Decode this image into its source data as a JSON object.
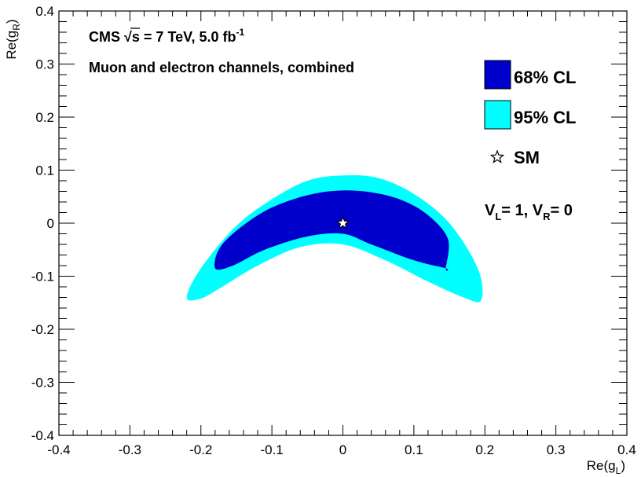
{
  "chart_data": {
    "type": "contour",
    "x_axis": {
      "label": {
        "main": "Re(g",
        "sub": "L",
        "close": ")"
      },
      "range": [
        -0.4,
        0.4
      ],
      "major_ticks": [
        -0.4,
        -0.3,
        -0.2,
        -0.1,
        0,
        0.1,
        0.2,
        0.3,
        0.4
      ],
      "tick_labels": [
        "-0.4",
        "-0.3",
        "-0.2",
        "-0.1",
        "0",
        "0.1",
        "0.2",
        "0.3",
        "0.4"
      ]
    },
    "y_axis": {
      "label": {
        "main": "Re(g",
        "sub": "R",
        "close": ")"
      },
      "range": [
        -0.4,
        0.4
      ],
      "major_ticks": [
        -0.4,
        -0.3,
        -0.2,
        -0.1,
        0,
        0.1,
        0.2,
        0.3,
        0.4
      ],
      "tick_labels": [
        "-0.4",
        "-0.3",
        "-0.2",
        "-0.1",
        "0",
        "0.1",
        "0.2",
        "0.3",
        "0.4"
      ]
    },
    "regions": [
      {
        "name": "95% CL",
        "color": "#00FFFF",
        "outer_boundary": [
          [
            -0.22,
            -0.14
          ],
          [
            -0.2,
            -0.085
          ],
          [
            -0.15,
            -0.005
          ],
          [
            -0.1,
            0.045
          ],
          [
            -0.05,
            0.08
          ],
          [
            0,
            0.09
          ],
          [
            0.05,
            0.085
          ],
          [
            0.1,
            0.055
          ],
          [
            0.15,
            0.0
          ],
          [
            0.19,
            -0.085
          ],
          [
            0.195,
            -0.145
          ]
        ],
        "inner_boundary": [
          [
            0.17,
            -0.14
          ],
          [
            0.12,
            -0.11
          ],
          [
            0.06,
            -0.07
          ],
          [
            0.0,
            -0.04
          ],
          [
            -0.06,
            -0.045
          ],
          [
            -0.12,
            -0.08
          ],
          [
            -0.17,
            -0.12
          ],
          [
            -0.2,
            -0.142
          ]
        ]
      },
      {
        "name": "68% CL",
        "color": "#0000CC",
        "outer_boundary": [
          [
            -0.18,
            -0.085
          ],
          [
            -0.17,
            -0.04
          ],
          [
            -0.12,
            0.015
          ],
          [
            -0.07,
            0.045
          ],
          [
            -0.02,
            0.06
          ],
          [
            0.03,
            0.06
          ],
          [
            0.08,
            0.045
          ],
          [
            0.12,
            0.015
          ],
          [
            0.148,
            -0.03
          ],
          [
            0.145,
            -0.085
          ]
        ],
        "inner_boundary": [
          [
            0.145,
            -0.085
          ],
          [
            0.1,
            -0.07
          ],
          [
            0.04,
            -0.04
          ],
          [
            0.0,
            -0.02
          ],
          [
            -0.05,
            -0.025
          ],
          [
            -0.11,
            -0.05
          ],
          [
            -0.155,
            -0.08
          ]
        ]
      }
    ],
    "markers": [
      {
        "name": "SM",
        "x": 0.0,
        "y": 0.0,
        "symbol": "open-star"
      }
    ],
    "legend": {
      "placement": "right",
      "entries": [
        {
          "label": "68% CL",
          "color": "#0000CC",
          "type": "box"
        },
        {
          "label": "95% CL",
          "color": "#00FFFF",
          "type": "box"
        },
        {
          "label": "SM",
          "type": "star"
        }
      ]
    },
    "annotations": {
      "cms_prefix": "CMS",
      "sqrt": "√",
      "energy": "s = 7 TeV, 5.0 fb",
      "lumi_exp": "-1",
      "channels": "Muon and electron channels, combined",
      "vl": "V",
      "vl_sub": "L",
      "vl_val": "= 1, V",
      "vr_sub": "R",
      "vr_val": "= 0"
    }
  }
}
